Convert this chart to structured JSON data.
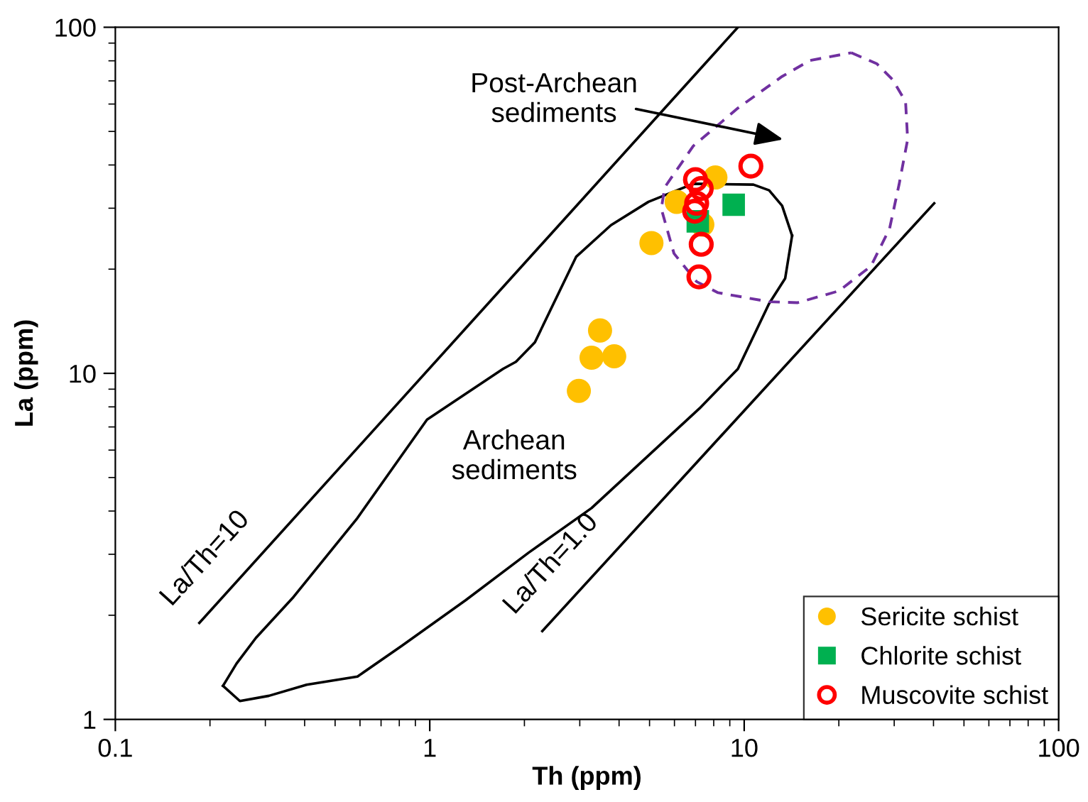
{
  "chart_data": {
    "type": "scatter",
    "xlabel": "Th (ppm)",
    "ylabel": "La (ppm)",
    "log": "xy",
    "xlim": [
      0.1,
      100
    ],
    "ylim": [
      1,
      100
    ],
    "xticks": [
      0.1,
      1,
      10,
      100
    ],
    "yticks": [
      1,
      10,
      100
    ],
    "grid": false,
    "legend": "bottom right",
    "series": [
      {
        "type": "line",
        "color": "#000000",
        "line_style": "solid",
        "marker": "none",
        "x": [
          0.22,
          0.249,
          0.308,
          0.406,
          0.589,
          0.813,
          1.3,
          2.06,
          3.27,
          7.21,
          9.55,
          12.0,
          13.5,
          14.2
        ],
        "values": [
          1.25,
          1.13,
          1.17,
          1.26,
          1.33,
          1.63,
          2.21,
          3.03,
          4.08,
          7.92,
          10.3,
          15.9,
          18.8,
          25.0
        ]
      },
      {
        "type": "line",
        "color": "#000000",
        "line_style": "solid",
        "marker": "none",
        "x": [
          0.22,
          0.243,
          0.28,
          0.369,
          0.589,
          0.98,
          1.71,
          1.88,
          2.16,
          2.92,
          3.77,
          4.96,
          6.89,
          10.7,
          12.0,
          13.2,
          14.2
        ],
        "values": [
          1.25,
          1.45,
          1.72,
          2.26,
          3.82,
          7.35,
          10.3,
          10.8,
          12.3,
          21.7,
          26.8,
          31.3,
          35.3,
          35.1,
          33.8,
          30.5,
          25.0
        ]
      },
      {
        "type": "line",
        "name": "La/Th=10",
        "color": "#000000",
        "line_style": "solid",
        "marker": "none",
        "x": [
          0.185,
          9.55
        ],
        "values": [
          1.9,
          100
        ]
      },
      {
        "type": "line",
        "name": "La/Th=1.0",
        "color": "#000000",
        "line_style": "solid",
        "marker": "none",
        "x": [
          2.28,
          40.2
        ],
        "values": [
          1.8,
          31
        ]
      },
      {
        "name": "Sericite schist",
        "color": "#ffc000",
        "marker": "circle",
        "x": [
          8.1,
          6.1,
          5.07,
          3.48,
          3.27,
          3.86,
          2.98,
          7.36
        ],
        "values": [
          36.8,
          31.3,
          23.8,
          13.3,
          11.1,
          11.2,
          8.9,
          26.9
        ]
      },
      {
        "name": "Chlorite schist",
        "color": "#00b050",
        "marker": "square",
        "x": [
          7.12,
          9.26
        ],
        "values": [
          27.5,
          30.7
        ]
      },
      {
        "name": "Muscovite schist",
        "color": "#ff0000",
        "marker": "open circle",
        "x": [
          10.5,
          7.0,
          7.3,
          7.06,
          6.96,
          7.3,
          7.18
        ],
        "values": [
          39.7,
          36.3,
          34.2,
          31.0,
          29.4,
          23.6,
          19.0
        ]
      }
    ],
    "annotations": [
      "Post-Archean\nsediments",
      "Archean\nsediments"
    ]
  }
}
